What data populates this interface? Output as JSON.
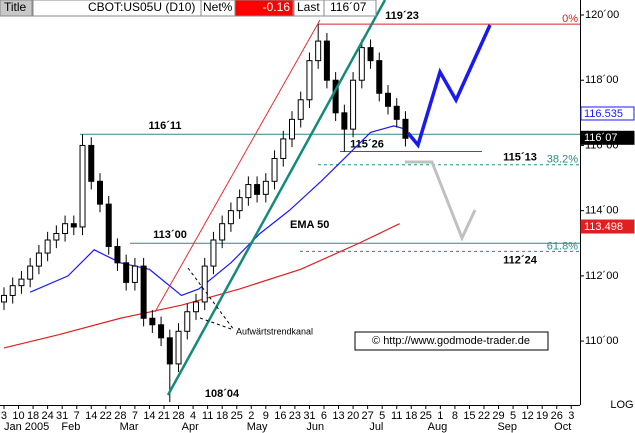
{
  "toolbar": {
    "title": "Title",
    "symbol": "CBOT:US05U (D10)",
    "net_label": "Net%",
    "net_value": "-0.16",
    "last_label": "Last",
    "last_value": "116´07"
  },
  "watermark": "© http://www.godmode-trader.de",
  "scale_mode": "LOG",
  "chart_data": {
    "type": "candlestick",
    "up_color": "#ffffff",
    "down_color": "#000000",
    "xlim": [
      -1.37,
      198
    ],
    "xticks": [
      {
        "value": 0,
        "label": "3"
      },
      {
        "value": 5,
        "label": "10"
      },
      {
        "value": 10,
        "label": "18"
      },
      {
        "value": 15,
        "label": "24"
      },
      {
        "value": 20,
        "label": "31"
      },
      {
        "value": 25,
        "label": "7"
      },
      {
        "value": 30,
        "label": "14"
      },
      {
        "value": 35,
        "label": "22"
      },
      {
        "value": 40,
        "label": "28"
      },
      {
        "value": 45,
        "label": "7"
      },
      {
        "value": 50,
        "label": "14"
      },
      {
        "value": 55,
        "label": "21"
      },
      {
        "value": 60,
        "label": "28"
      },
      {
        "value": 65,
        "label": "4"
      },
      {
        "value": 70,
        "label": "11"
      },
      {
        "value": 75,
        "label": "18"
      },
      {
        "value": 80,
        "label": "25"
      },
      {
        "value": 85,
        "label": "2"
      },
      {
        "value": 90,
        "label": "9"
      },
      {
        "value": 95,
        "label": "16"
      },
      {
        "value": 100,
        "label": "23"
      },
      {
        "value": 105,
        "label": "31"
      },
      {
        "value": 110,
        "label": "6"
      },
      {
        "value": 115,
        "label": "13"
      },
      {
        "value": 120,
        "label": "20"
      },
      {
        "value": 125,
        "label": "27"
      },
      {
        "value": 130,
        "label": "5"
      },
      {
        "value": 135,
        "label": "11"
      },
      {
        "value": 140,
        "label": "18"
      },
      {
        "value": 145,
        "label": "25"
      },
      {
        "value": 150,
        "label": "1"
      },
      {
        "value": 155,
        "label": "8"
      },
      {
        "value": 160,
        "label": "15"
      },
      {
        "value": 165,
        "label": "22"
      },
      {
        "value": 170,
        "label": "29"
      },
      {
        "value": 175,
        "label": "5"
      },
      {
        "value": 180,
        "label": "12"
      },
      {
        "value": 185,
        "label": "19"
      },
      {
        "value": 190,
        "label": "26"
      },
      {
        "value": 195,
        "label": "3"
      }
    ],
    "month_labels": [
      {
        "value": 0,
        "label": "Jan 2005"
      },
      {
        "value": 23,
        "label": "Feb"
      },
      {
        "value": 43,
        "label": "Mar"
      },
      {
        "value": 64,
        "label": "Apr"
      },
      {
        "value": 87,
        "label": "May"
      },
      {
        "value": 107,
        "label": "Jun"
      },
      {
        "value": 128,
        "label": "Jul"
      },
      {
        "value": 149,
        "label": "Aug"
      },
      {
        "value": 173,
        "label": "Sep"
      },
      {
        "value": 195,
        "label": "Oct"
      }
    ],
    "ylim": [
      108.04,
      120.46
    ],
    "yticks": [
      {
        "value": 110,
        "label": "110´00"
      },
      {
        "value": 112,
        "label": "112´00"
      },
      {
        "value": 114,
        "label": "114´00"
      },
      {
        "value": 116,
        "label": "116´00"
      },
      {
        "value": 118,
        "label": "118´00"
      },
      {
        "value": 120,
        "label": "120´00"
      }
    ],
    "x": [
      0,
      3,
      6,
      9,
      12,
      15,
      18,
      21,
      24,
      27,
      30,
      33,
      36,
      39,
      42,
      45,
      48,
      51,
      54,
      57,
      60,
      63,
      66,
      69,
      72,
      75,
      78,
      81,
      84,
      87,
      90,
      93,
      96,
      99,
      102,
      105,
      108,
      111,
      114,
      117,
      120,
      123,
      126,
      129,
      132,
      135,
      138
    ],
    "open": [
      111.2,
      111.4,
      111.7,
      111.9,
      112.3,
      112.7,
      113.1,
      113.3,
      113.6,
      113.5,
      116.0,
      114.9,
      114.2,
      112.9,
      112.4,
      111.8,
      112.3,
      110.7,
      110.5,
      110.1,
      109.3,
      110.3,
      110.9,
      111.2,
      112.3,
      113.1,
      113.6,
      114.0,
      114.4,
      114.8,
      114.5,
      114.9,
      115.6,
      116.2,
      116.8,
      117.4,
      118.6,
      119.2,
      118.0,
      117.0,
      116.5,
      118.0,
      119.0,
      118.6,
      117.6,
      117.2,
      116.8
    ],
    "high": [
      111.65,
      111.95,
      112.15,
      112.55,
      112.95,
      113.35,
      113.55,
      113.85,
      113.85,
      116.34,
      116.25,
      115.15,
      114.45,
      113.15,
      112.65,
      112.55,
      112.55,
      110.95,
      110.75,
      110.35,
      110.55,
      111.15,
      111.45,
      112.55,
      113.35,
      113.85,
      114.25,
      114.65,
      115.05,
      115.05,
      115.15,
      115.85,
      116.45,
      117.05,
      117.65,
      118.85,
      119.72,
      119.45,
      118.25,
      117.25,
      118.25,
      119.25,
      119.25,
      118.85,
      117.85,
      117.45,
      117.05
    ],
    "low": [
      110.95,
      111.15,
      111.45,
      111.65,
      112.05,
      112.45,
      112.85,
      113.05,
      113.25,
      113.25,
      114.65,
      113.95,
      112.65,
      112.15,
      111.55,
      111.55,
      110.45,
      110.25,
      109.85,
      108.13,
      109.05,
      110.05,
      110.65,
      110.95,
      112.05,
      112.85,
      113.35,
      113.75,
      114.15,
      114.25,
      114.25,
      114.65,
      115.35,
      115.95,
      116.55,
      117.15,
      118.35,
      117.75,
      116.75,
      115.81,
      116.25,
      117.75,
      118.35,
      117.35,
      116.95,
      116.55,
      115.97
    ],
    "close": [
      111.4,
      111.7,
      111.9,
      112.3,
      112.7,
      113.1,
      113.3,
      113.6,
      113.5,
      116.0,
      114.9,
      114.2,
      112.9,
      112.4,
      111.8,
      112.3,
      110.7,
      110.5,
      110.1,
      109.3,
      110.3,
      110.9,
      111.2,
      112.3,
      113.1,
      113.6,
      114.0,
      114.4,
      114.8,
      114.5,
      114.9,
      115.6,
      116.2,
      116.8,
      117.4,
      118.6,
      119.2,
      118.0,
      117.0,
      116.5,
      118.0,
      119.0,
      118.6,
      117.6,
      117.2,
      116.8,
      116.22
    ],
    "lines": [
      {
        "name": "EMA 50",
        "color": "#1a1aff",
        "x": [
          9,
          22,
          31,
          40,
          50,
          61,
          67,
          78,
          88,
          98,
          109,
          117,
          126,
          134,
          138
        ],
        "values": [
          111.5,
          112.0,
          112.8,
          112.4,
          112.2,
          111.4,
          111.6,
          112.4,
          113.3,
          114.0,
          114.9,
          115.6,
          116.4,
          116.6,
          116.5
        ]
      },
      {
        "color": "#e02020",
        "x": [
          0,
          19,
          40,
          61,
          81,
          102,
          122,
          136
        ],
        "values": [
          109.79,
          110.2,
          110.7,
          111.1,
          111.6,
          112.2,
          113.0,
          113.6
        ]
      }
    ],
    "levels": [
      {
        "label": "116´11",
        "value": 116.34375
      },
      {
        "label": "113´00",
        "value": 113
      },
      {
        "label": "119´23",
        "value": 119.71875,
        "fib": "0%"
      },
      {
        "label": "115´26",
        "value": 115.8125
      },
      {
        "label": "115´13",
        "value": 115.40625,
        "fib": "38.2%"
      },
      {
        "label": "112´24",
        "value": 112.75,
        "fib": "61.8%"
      },
      {
        "label": "108´04",
        "value": 108.125
      }
    ],
    "annotation": "Aufwärtstrendkanal",
    "price_tags": [
      {
        "label": "116.535",
        "value": 116.535,
        "color": "#1a1aff"
      },
      {
        "label": "116´07",
        "value": 116.21875,
        "color": "#000000"
      },
      {
        "label": "113.498",
        "value": 113.498,
        "color": "#e02020"
      }
    ]
  }
}
